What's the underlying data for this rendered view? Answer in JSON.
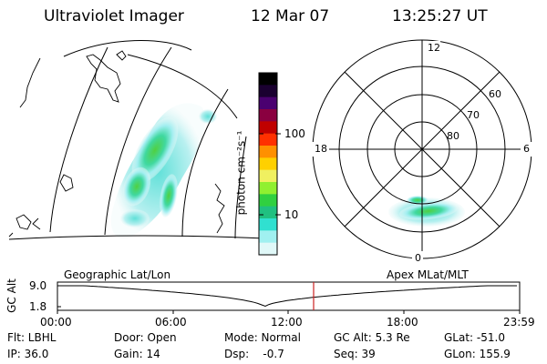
{
  "header": {
    "title": "Ultraviolet Imager",
    "date": "12 Mar 07",
    "time": "13:25:27 UT"
  },
  "maps": {
    "left_caption": "Geographic Lat/Lon",
    "right_caption": "Apex MLat/MLT"
  },
  "colorbar": {
    "unit_label": "photon cm⁻²s⁻¹",
    "ticks": [
      "100",
      "10"
    ],
    "colors": [
      "#000000",
      "#1a0030",
      "#4a0070",
      "#8a0040",
      "#c00000",
      "#ff3000",
      "#ff9000",
      "#ffd000",
      "#f0f060",
      "#90f030",
      "#30d040",
      "#20c080",
      "#30e0d0",
      "#a0f0f0",
      "#e0f8f8"
    ]
  },
  "polar": {
    "mlt_labels": {
      "top": "12",
      "left": "18",
      "right": "6",
      "bottom": "0"
    },
    "lat_labels": [
      "60",
      "70",
      "80"
    ]
  },
  "timeline": {
    "ylabel": "GC Alt",
    "ytick_top": "9.0",
    "ytick_bottom": "1.8",
    "xticks": [
      "00:00",
      "06:00",
      "12:00",
      "18:00",
      "23:59"
    ],
    "marker_color": "#cc2222"
  },
  "info": {
    "flt": "Flt: LBHL",
    "ip": "IP: 36.0",
    "door": "Door: Open",
    "gain": "Gain: 14",
    "mode": "Mode: Normal",
    "dsp": "Dsp:    -0.7",
    "gcalt": "GC Alt: 5.3 Re",
    "seq": "Seq: 39",
    "glat": "GLat: -51.0",
    "glon": "GLon: 155.9"
  }
}
